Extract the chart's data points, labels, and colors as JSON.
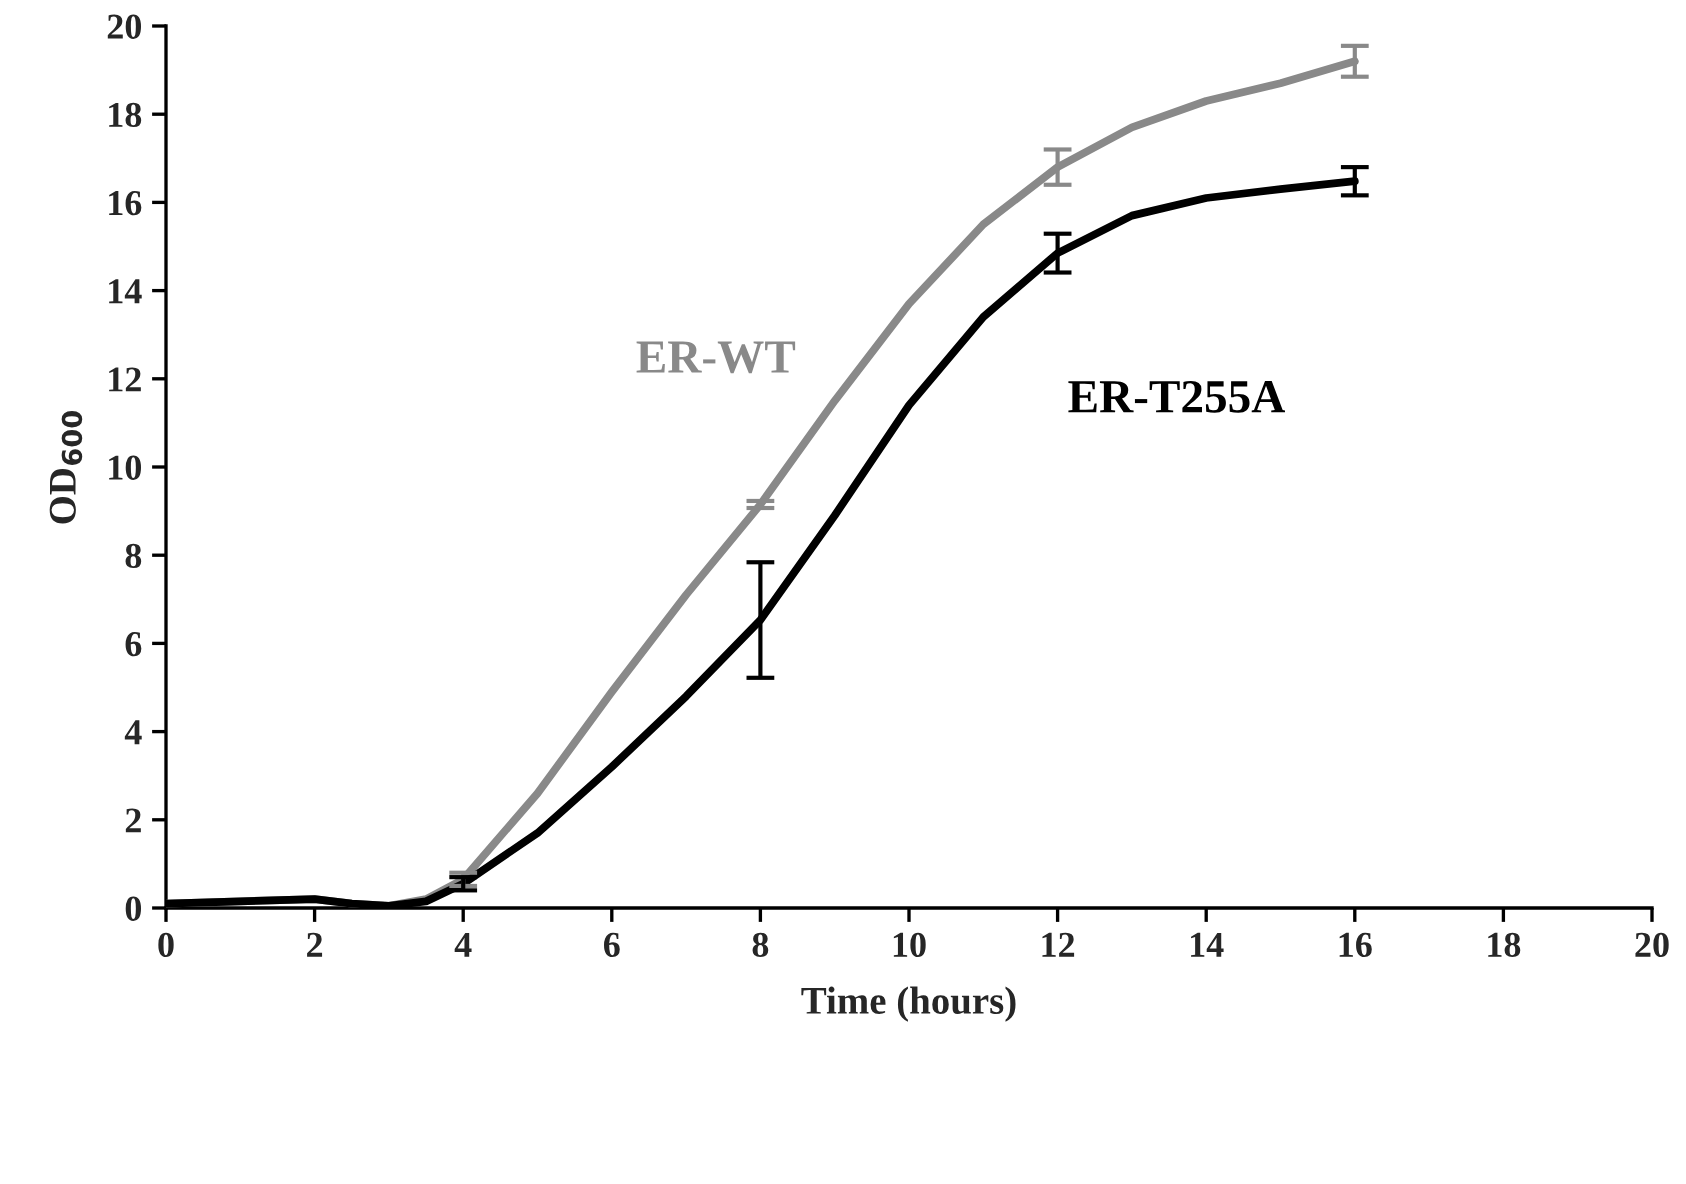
{
  "chart_data": {
    "type": "line",
    "xlabel": "Time (hours)",
    "ylabel": "OD$_{600}$",
    "x": [
      0,
      1,
      2,
      2.5,
      3,
      3.5,
      4,
      5,
      6,
      7,
      8,
      9,
      10,
      11,
      12,
      13,
      14,
      15,
      16
    ],
    "series": [
      {
        "name": "ER-WT",
        "color": "#898989",
        "values": [
          0.1,
          0.15,
          0.2,
          0.1,
          0.05,
          0.2,
          0.65,
          2.6,
          4.9,
          7.1,
          9.15,
          11.5,
          13.7,
          15.5,
          16.8,
          17.7,
          18.3,
          18.7,
          19.2
        ],
        "errors": [
          null,
          null,
          null,
          null,
          null,
          null,
          0.15,
          null,
          null,
          null,
          0.08,
          null,
          null,
          null,
          0.4,
          null,
          null,
          null,
          0.35
        ]
      },
      {
        "name": "ER-T255A",
        "color": "#000000",
        "values": [
          0.1,
          0.15,
          0.2,
          0.1,
          0.05,
          0.15,
          0.55,
          1.7,
          3.2,
          4.8,
          6.53,
          8.9,
          11.4,
          13.4,
          14.85,
          15.7,
          16.1,
          16.3,
          16.48
        ],
        "errors": [
          null,
          null,
          null,
          null,
          null,
          null,
          0.15,
          null,
          null,
          null,
          1.31,
          null,
          null,
          null,
          0.44,
          null,
          null,
          null,
          0.32
        ]
      }
    ],
    "xlim": [
      0,
      20
    ],
    "xticks": [
      0,
      2,
      4,
      6,
      8,
      10,
      12,
      14,
      16,
      18,
      20
    ],
    "ylim": [
      0,
      20
    ],
    "yticks": [
      0,
      2,
      4,
      6,
      8,
      10,
      12,
      14,
      16,
      18,
      20
    ],
    "grid": false,
    "legend": false,
    "marker": "none",
    "line_style": "solid"
  }
}
